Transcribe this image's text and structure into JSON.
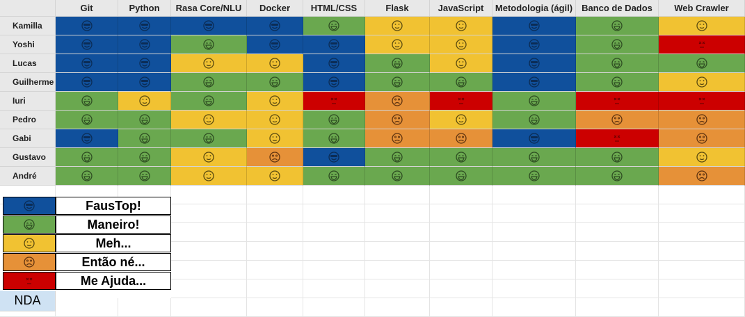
{
  "colors": {
    "faustop": "#10509c",
    "maneiro": "#6aa84f",
    "meh": "#f1c232",
    "entao": "#e69138",
    "ajuda": "#cc0000",
    "nda": "#cfe2f3"
  },
  "columns": [
    "Git",
    "Python",
    "Rasa Core/NLU",
    "Docker",
    "HTML/CSS",
    "Flask",
    "JavaScript",
    "Metodologia (ágil)",
    "Banco de Dados",
    "Web Crawler"
  ],
  "rows": [
    {
      "name": "Kamilla",
      "ratings": [
        "faustop",
        "faustop",
        "faustop",
        "faustop",
        "maneiro",
        "meh",
        "meh",
        "faustop",
        "maneiro",
        "meh"
      ]
    },
    {
      "name": "Yoshi",
      "ratings": [
        "faustop",
        "faustop",
        "maneiro",
        "faustop",
        "faustop",
        "meh",
        "meh",
        "faustop",
        "maneiro",
        "ajuda"
      ]
    },
    {
      "name": "Lucas",
      "ratings": [
        "faustop",
        "faustop",
        "meh",
        "meh",
        "faustop",
        "maneiro",
        "meh",
        "faustop",
        "maneiro",
        "maneiro"
      ]
    },
    {
      "name": "Guilherme",
      "ratings": [
        "faustop",
        "faustop",
        "maneiro",
        "maneiro",
        "faustop",
        "maneiro",
        "maneiro",
        "faustop",
        "maneiro",
        "meh"
      ]
    },
    {
      "name": "Iuri",
      "ratings": [
        "maneiro",
        "meh",
        "maneiro",
        "meh",
        "ajuda",
        "entao",
        "ajuda",
        "maneiro",
        "ajuda",
        "ajuda"
      ]
    },
    {
      "name": "Pedro",
      "ratings": [
        "maneiro",
        "maneiro",
        "meh",
        "meh",
        "maneiro",
        "entao",
        "meh",
        "maneiro",
        "entao",
        "entao"
      ]
    },
    {
      "name": "Gabi",
      "ratings": [
        "faustop",
        "maneiro",
        "maneiro",
        "meh",
        "maneiro",
        "entao",
        "entao",
        "faustop",
        "ajuda",
        "entao"
      ]
    },
    {
      "name": "Gustavo",
      "ratings": [
        "maneiro",
        "maneiro",
        "meh",
        "entao",
        "faustop",
        "maneiro",
        "maneiro",
        "maneiro",
        "maneiro",
        "meh"
      ]
    },
    {
      "name": "André",
      "ratings": [
        "maneiro",
        "maneiro",
        "meh",
        "meh",
        "maneiro",
        "maneiro",
        "maneiro",
        "maneiro",
        "maneiro",
        "entao"
      ]
    }
  ],
  "legend": [
    {
      "key": "faustop",
      "label": "FausTop!"
    },
    {
      "key": "maneiro",
      "label": "Maneiro!"
    },
    {
      "key": "meh",
      "label": "Meh..."
    },
    {
      "key": "entao",
      "label": "Então né..."
    },
    {
      "key": "ajuda",
      "label": "Me Ajuda..."
    }
  ],
  "nda_label": "NDA"
}
